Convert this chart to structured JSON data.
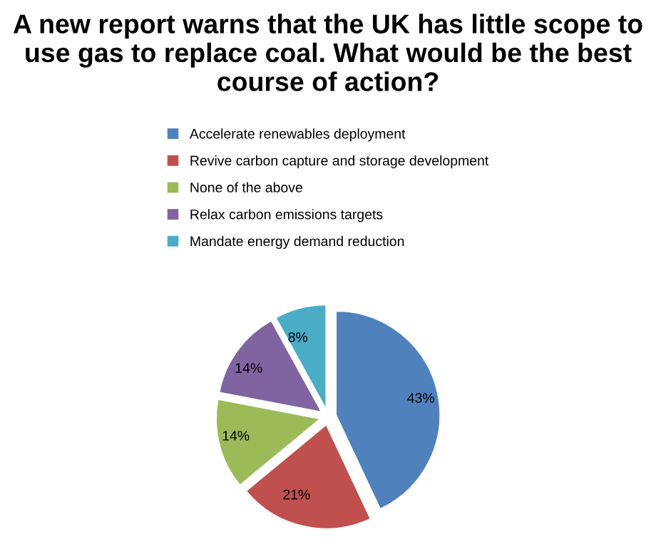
{
  "chart_data": {
    "type": "pie",
    "title": "A new report warns that the UK has little scope to use gas to replace coal. What would be the best course of action?",
    "categories": [
      "Accelerate renewables deployment",
      "Revive carbon capture and storage development",
      "None of the above",
      "Relax carbon emissions targets",
      "Mandate energy demand reduction"
    ],
    "values": [
      43,
      21,
      14,
      14,
      8
    ],
    "colors": [
      "#4f81bd",
      "#c0504d",
      "#9bbb59",
      "#8064a2",
      "#4bacc6"
    ],
    "value_labels": [
      "43%",
      "21%",
      "14%",
      "14%",
      "8%"
    ],
    "legend": "top"
  }
}
